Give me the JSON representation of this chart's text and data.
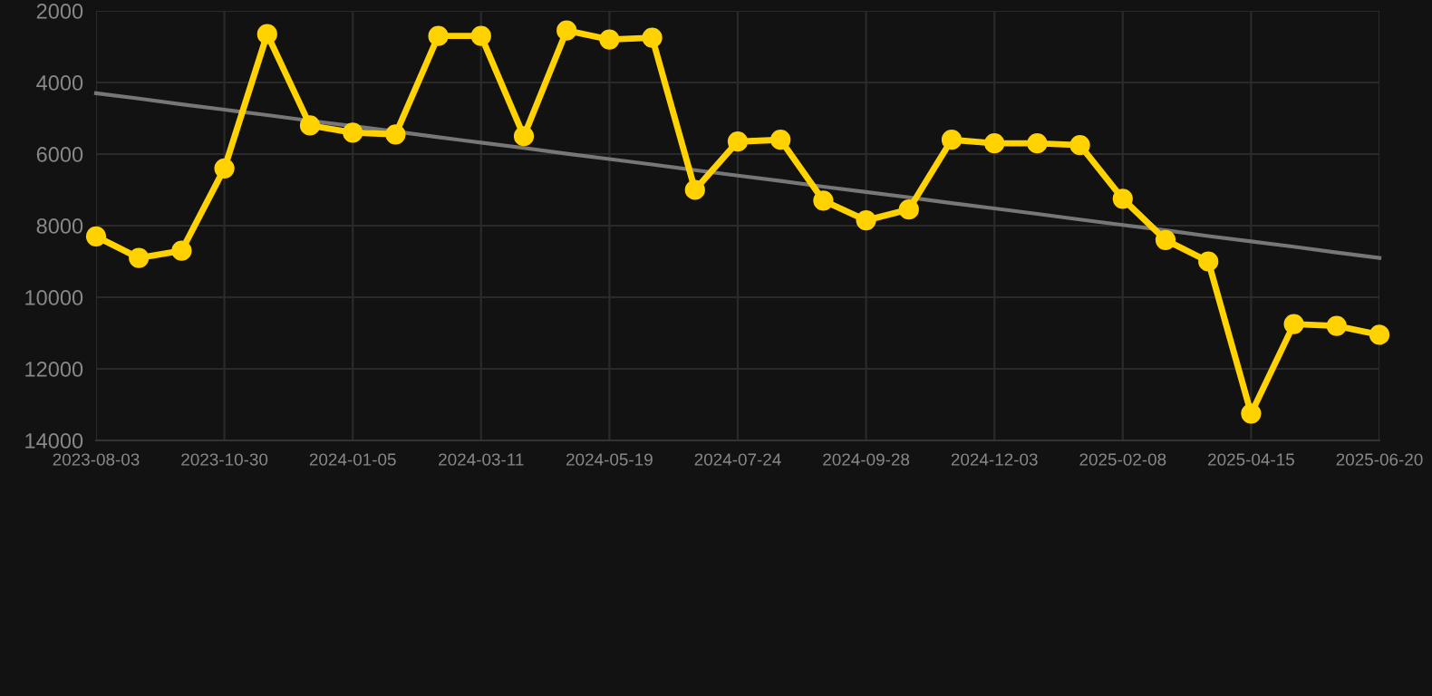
{
  "chart_data": {
    "type": "line",
    "categories": [
      "2023-08-03",
      null,
      null,
      "2023-10-30",
      null,
      null,
      "2024-01-05",
      null,
      null,
      "2024-03-11",
      null,
      null,
      "2024-05-19",
      null,
      null,
      "2024-07-24",
      null,
      null,
      "2024-09-28",
      null,
      null,
      "2024-12-03",
      null,
      null,
      "2025-02-08",
      null,
      null,
      "2025-04-15",
      null,
      null,
      "2025-06-20"
    ],
    "series": [
      {
        "color": "#ffd200",
        "marker": "circle",
        "values": [
          8300,
          8900,
          8700,
          6400,
          2650,
          5200,
          5400,
          5450,
          2700,
          2700,
          5500,
          2550,
          2800,
          2750,
          7000,
          5650,
          5600,
          7300,
          7850,
          7550,
          5600,
          5700,
          5700,
          5750,
          7250,
          8400,
          9000,
          13250,
          10750,
          10800,
          11050
        ]
      },
      {
        "type": "line",
        "color": "#777777",
        "marker": "none",
        "values": [
          4300,
          4450,
          4610,
          4760,
          4910,
          5070,
          5220,
          5370,
          5530,
          5680,
          5830,
          5990,
          6140,
          6290,
          6450,
          6600,
          6750,
          6910,
          7060,
          7210,
          7370,
          7520,
          7670,
          7830,
          7980,
          8130,
          8290,
          8440,
          8590,
          8750,
          8900
        ]
      }
    ],
    "ylim": [
      14000,
      2000
    ],
    "yticks": [
      2000,
      4000,
      6000,
      8000,
      10000,
      12000,
      14000
    ],
    "grid": true,
    "legend": false
  }
}
